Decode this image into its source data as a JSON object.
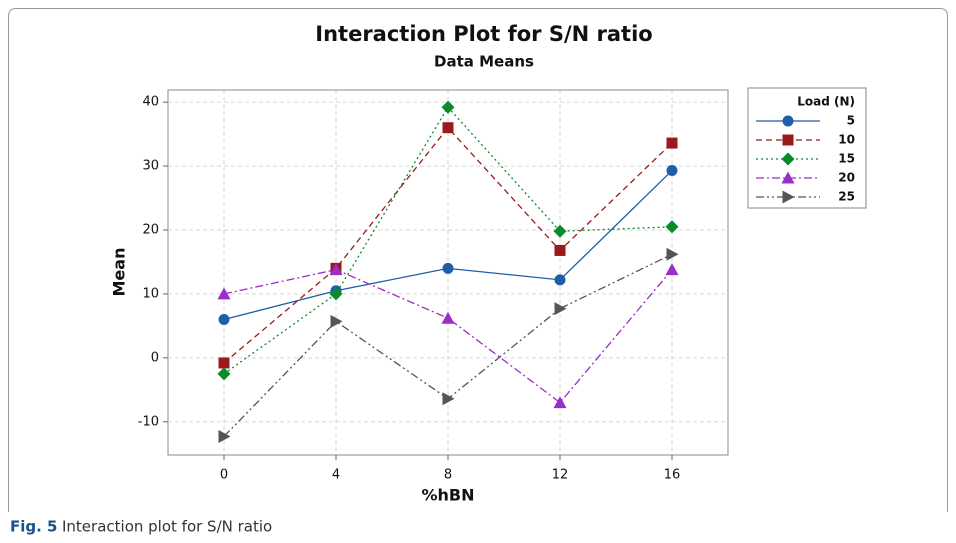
{
  "chart_data": {
    "type": "line",
    "title": "Interaction Plot for S/N ratio",
    "subtitle": "Data Means",
    "xlabel": "%hBN",
    "ylabel": "Mean",
    "legend_title": "Load (N)",
    "legend": "outside-right",
    "grid": true,
    "x": [
      0,
      4,
      8,
      12,
      16
    ],
    "xlim": [
      -2,
      18
    ],
    "xticks": [
      0,
      4,
      8,
      12,
      16
    ],
    "ylim": [
      -15.2,
      41.9
    ],
    "yticks": [
      -10,
      0,
      10,
      20,
      30,
      40
    ],
    "series": [
      {
        "name": "5",
        "color": "#1f5ea8",
        "marker": "circle",
        "dash": "solid",
        "values": [
          6,
          10.5,
          14,
          12.2,
          29.3
        ]
      },
      {
        "name": "10",
        "color": "#9a1a1a",
        "marker": "square",
        "dash": "dashed",
        "values": [
          -0.8,
          14,
          36,
          16.8,
          33.6
        ]
      },
      {
        "name": "15",
        "color": "#0b8a2c",
        "marker": "diamond",
        "dash": "dotted",
        "values": [
          -2.5,
          10,
          39.2,
          19.8,
          20.5
        ]
      },
      {
        "name": "20",
        "color": "#9a2ec6",
        "marker": "triangle",
        "dash": "dashdot",
        "values": [
          10,
          13.8,
          6.2,
          -7,
          13.8
        ]
      },
      {
        "name": "25",
        "color": "#555555",
        "marker": "triangle-right",
        "dash": "dashdotdot",
        "values": [
          -12.3,
          5.7,
          -6.4,
          7.7,
          16.2
        ]
      }
    ]
  },
  "caption": {
    "label": "Fig. 5",
    "text": "Interaction plot for S/N ratio"
  }
}
